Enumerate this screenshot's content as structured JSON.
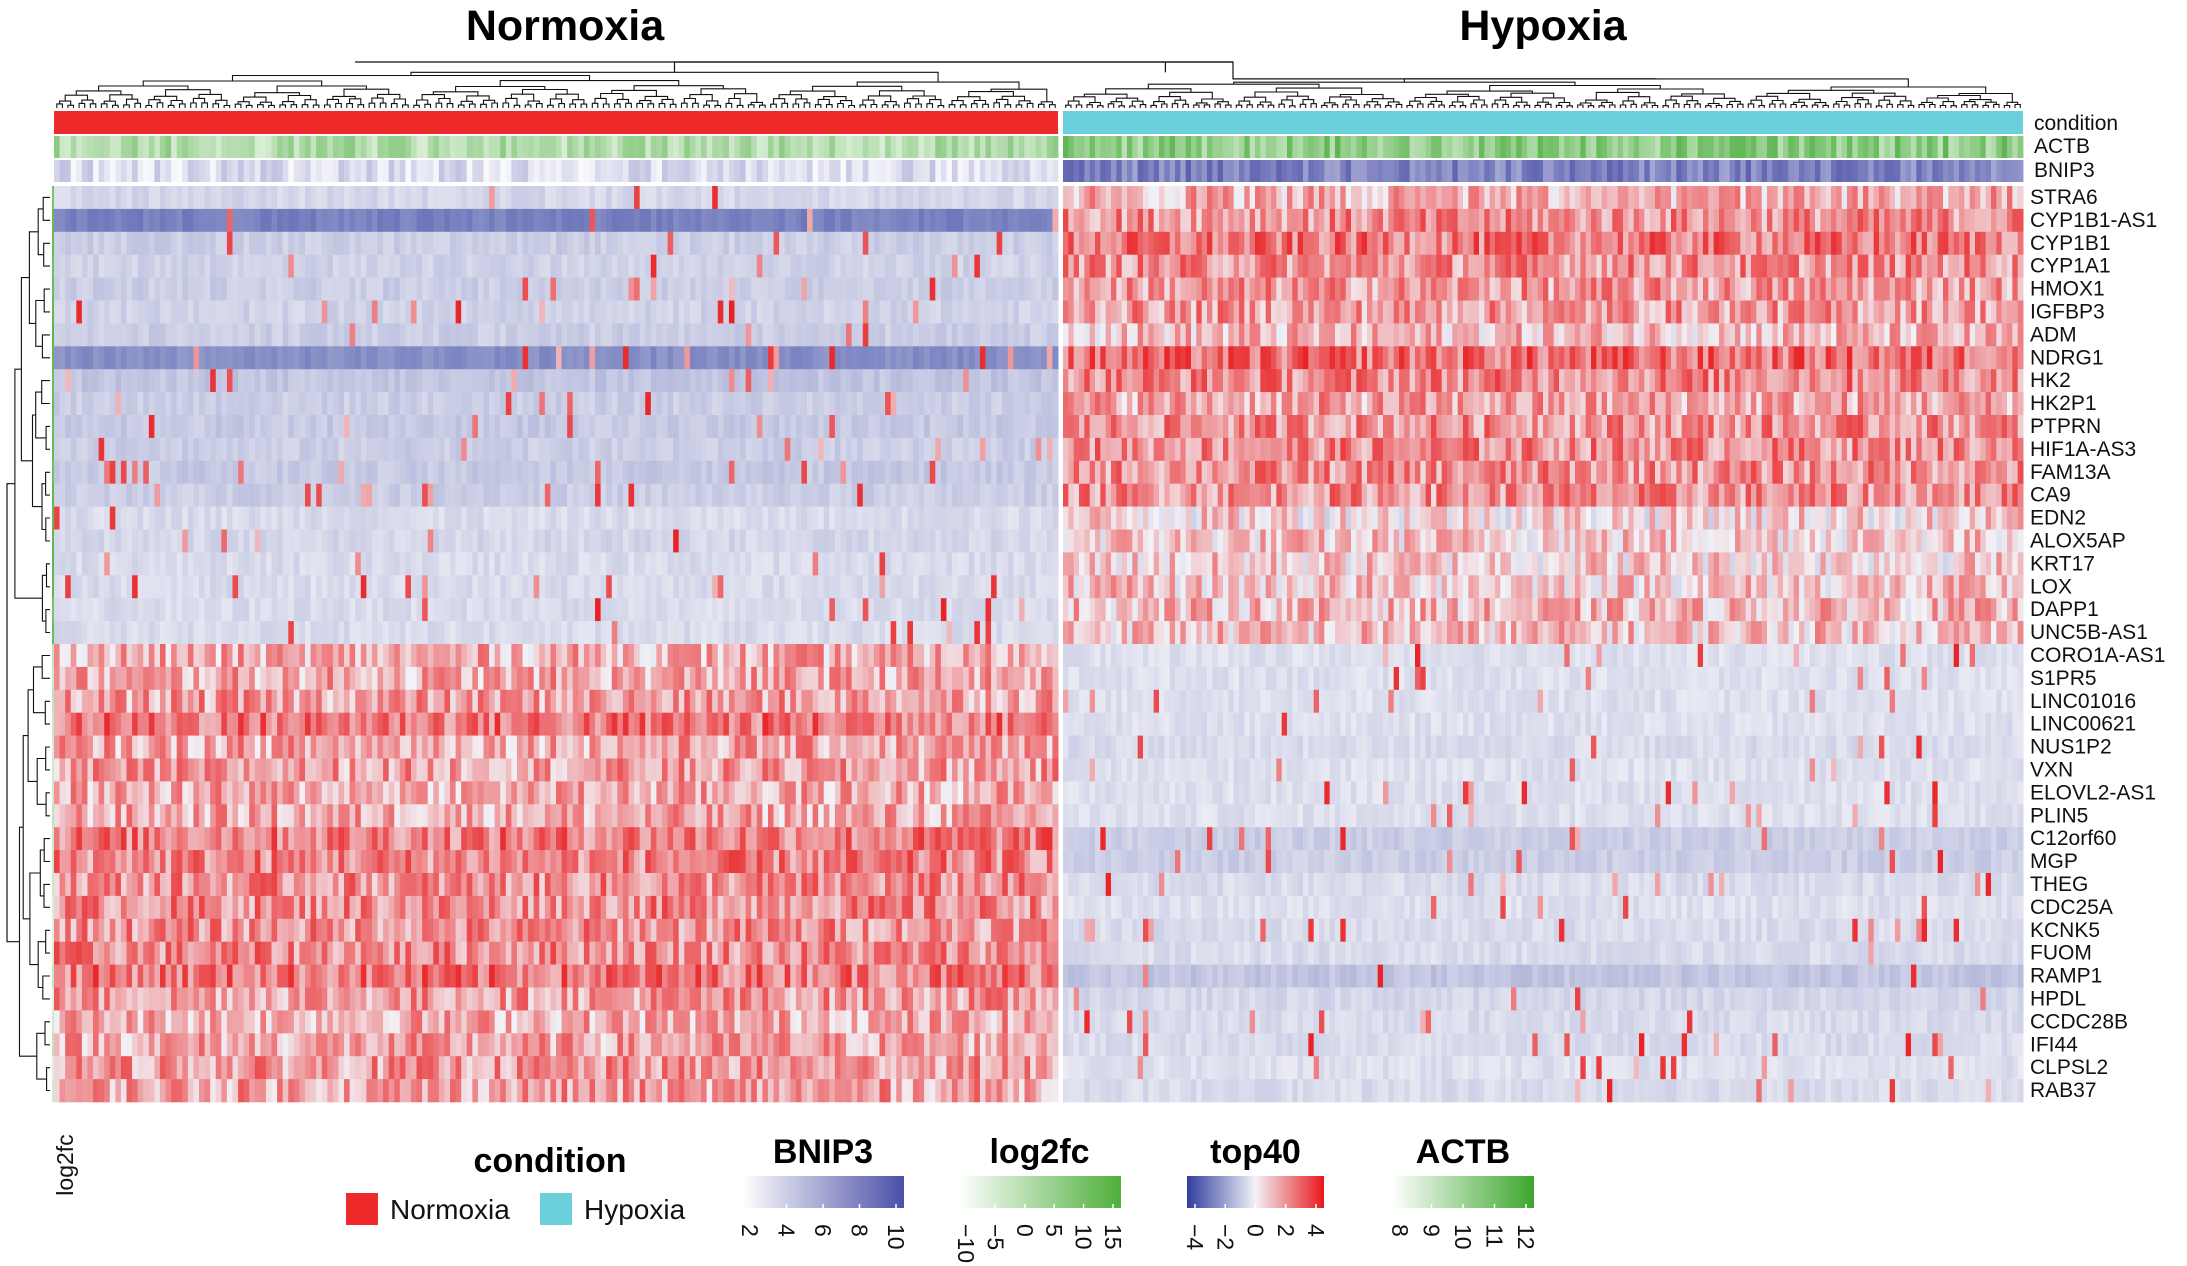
{
  "chart_data": {
    "type": "heatmap",
    "groups": [
      {
        "label": "Normoxia",
        "color": "#EE2A2A"
      },
      {
        "label": "Hypoxia",
        "color": "#6CCFDC"
      }
    ],
    "column_annotations": [
      "condition",
      "ACTB",
      "BNIP3"
    ],
    "row_annotation": "log2fc",
    "genes": [
      "STRA6",
      "CYP1B1-AS1",
      "CYP1B1",
      "CYP1A1",
      "HMOX1",
      "IGFBP3",
      "ADM",
      "NDRG1",
      "HK2",
      "HK2P1",
      "PTPRN",
      "HIF1A-AS3",
      "FAM13A",
      "CA9",
      "EDN2",
      "ALOX5AP",
      "KRT17",
      "LOX",
      "DAPP1",
      "UNC5B-AS1",
      "CORO1A-AS1",
      "S1PR5",
      "LINC01016",
      "LINC00621",
      "NUS1P2",
      "VXN",
      "ELOVL2-AS1",
      "PLIN5",
      "C12orf60",
      "MGP",
      "THEG",
      "CDC25A",
      "KCNK5",
      "FUOM",
      "RAMP1",
      "HPDL",
      "CCDC28B",
      "IFI44",
      "CLPSL2",
      "RAB37"
    ],
    "mean_top40": {
      "Normoxia": [
        -0.6,
        -2.5,
        -0.8,
        -0.7,
        -0.8,
        -0.7,
        -0.8,
        -2.2,
        -1.0,
        -0.8,
        -0.9,
        -0.8,
        -0.9,
        -0.8,
        -0.5,
        -0.6,
        -0.5,
        -0.5,
        -0.5,
        -0.5,
        1.2,
        1.3,
        1.5,
        2.3,
        1.4,
        1.5,
        1.3,
        1.3,
        2.2,
        2.0,
        1.8,
        1.9,
        1.8,
        1.9,
        2.3,
        1.6,
        1.3,
        1.4,
        1.6,
        1.5
      ],
      "Hypoxia": [
        1.2,
        1.8,
        2.2,
        1.8,
        1.6,
        1.6,
        1.0,
        2.4,
        2.0,
        1.4,
        1.8,
        1.9,
        1.8,
        1.8,
        0.6,
        0.8,
        0.7,
        0.8,
        1.0,
        0.9,
        -0.4,
        -0.4,
        -0.4,
        -0.4,
        -0.5,
        -0.4,
        -0.4,
        -0.4,
        -0.8,
        -0.8,
        -0.5,
        -0.4,
        -0.5,
        -0.5,
        -1.0,
        -0.6,
        -0.5,
        -0.5,
        -0.4,
        -0.5
      ]
    },
    "log2fc_sign": [
      "up",
      "up",
      "up",
      "up",
      "up",
      "up",
      "up",
      "up",
      "up",
      "up",
      "up",
      "up",
      "up",
      "up",
      "up",
      "up",
      "up",
      "up",
      "up",
      "up",
      "down",
      "down",
      "down",
      "down",
      "down",
      "down",
      "down",
      "down",
      "down",
      "down",
      "down",
      "down",
      "down",
      "down",
      "down",
      "down",
      "down",
      "down",
      "down",
      "down"
    ],
    "legends": {
      "condition": {
        "title": "condition",
        "entries": [
          "Normoxia",
          "Hypoxia"
        ]
      },
      "BNIP3": {
        "title": "BNIP3",
        "ticks": [
          "2",
          "4",
          "6",
          "8",
          "10"
        ],
        "range": [
          2,
          10
        ],
        "colors": [
          "#FFFFFF",
          "#4B4FA6"
        ]
      },
      "log2fc": {
        "title": "log2fc",
        "ticks": [
          "−10",
          "−5",
          "0",
          "5",
          "10",
          "15"
        ],
        "range": [
          -10,
          15
        ],
        "colors": [
          "#FFFFFF",
          "#4DAF3A"
        ]
      },
      "top40": {
        "title": "top40",
        "ticks": [
          "−4",
          "−2",
          "0",
          "2",
          "4"
        ],
        "range": [
          -4,
          4
        ],
        "colors": [
          "#2F3E9E",
          "#F2F2F7",
          "#E8181A"
        ]
      },
      "ACTB": {
        "title": "ACTB",
        "ticks": [
          "8",
          "9",
          "10",
          "11",
          "12"
        ],
        "range": [
          8,
          12
        ],
        "colors": [
          "#FFFFFF",
          "#3DA62E"
        ]
      }
    }
  }
}
